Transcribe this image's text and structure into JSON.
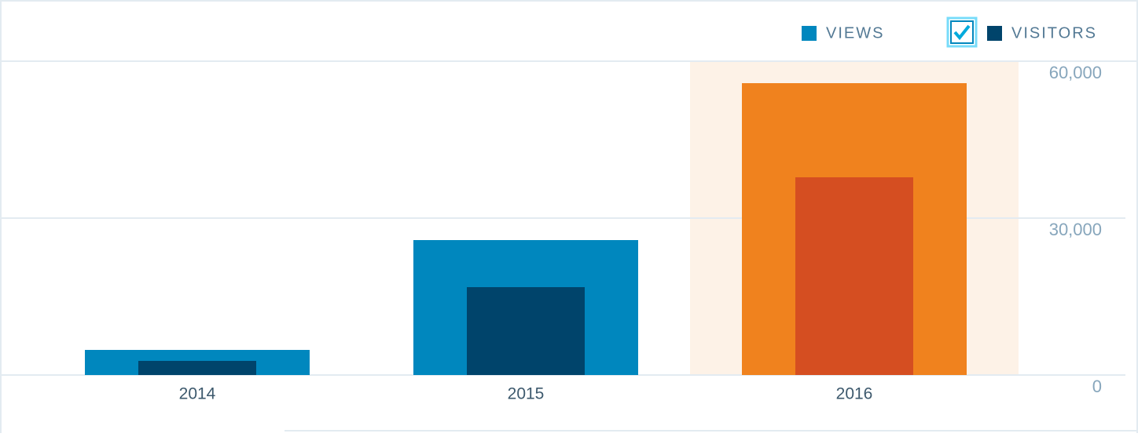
{
  "chart_data": {
    "type": "bar",
    "categories": [
      "2014",
      "2015",
      "2016"
    ],
    "series": [
      {
        "name": "VIEWS",
        "color": "#0087be",
        "highlight_color": "#f0821e",
        "values": [
          4800,
          25800,
          55800
        ]
      },
      {
        "name": "VISITORS",
        "color": "#00446b",
        "highlight_color": "#d54e21",
        "values": [
          2700,
          16800,
          37800
        ]
      }
    ],
    "highlight_category": "2016",
    "highlight_background": "#fdf2e7",
    "ylim": [
      0,
      60000
    ],
    "yticks": [
      0,
      {
        "value": 30000,
        "label": "30,000"
      },
      {
        "value": 60000,
        "label": "60,000"
      }
    ],
    "grid": true
  }
}
